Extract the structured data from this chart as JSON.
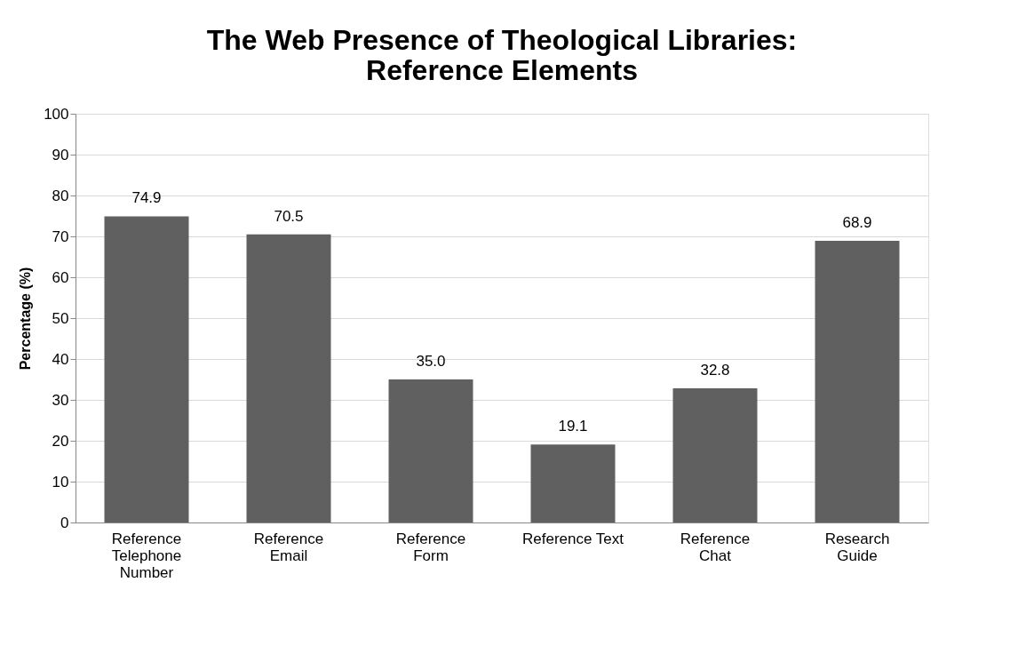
{
  "chart_data": {
    "type": "bar",
    "title": "The Web Presence of Theological Libraries:\nReference Elements",
    "ylabel": "Percentage (%)",
    "categories": [
      "Reference\nTelephone\nNumber",
      "Reference\nEmail",
      "Reference\nForm",
      "Reference Text",
      "Reference\nChat",
      "Research\nGuide"
    ],
    "values": [
      74.9,
      70.5,
      35.0,
      19.1,
      32.8,
      68.9
    ],
    "color": "#606060",
    "value_labels": [
      "74.9",
      "70.5",
      "35.0",
      "19.1",
      "32.8",
      "68.9"
    ],
    "ylim": [
      0,
      100
    ],
    "yticks": [
      0,
      10,
      20,
      30,
      40,
      50,
      60,
      70,
      80,
      90,
      100
    ],
    "grid": "y"
  }
}
